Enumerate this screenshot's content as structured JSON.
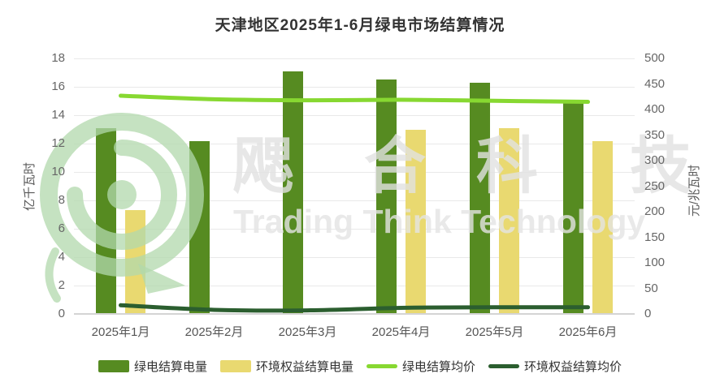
{
  "title": "天津地区2025年1-6月绿电市场结算情况",
  "watermark": {
    "cn_chars": [
      "飔",
      "合",
      "科",
      "技"
    ],
    "en": "Trading Think Technology"
  },
  "chart_data": {
    "type": "bar",
    "subtype": "dual-axis bar and line combo",
    "categories": [
      "2025年1月",
      "2025年2月",
      "2025年3月",
      "2025年4月",
      "2025年5月",
      "2025年6月"
    ],
    "series": [
      {
        "key": "green-power-volume",
        "name": "绿电结算电量",
        "type": "bar",
        "yaxis": "left",
        "color": "#568b21",
        "values": [
          13.1,
          12.2,
          17.1,
          16.5,
          16.3,
          14.9
        ]
      },
      {
        "key": "env-rights-volume",
        "name": "环境权益结算电量",
        "type": "bar",
        "yaxis": "left",
        "color": "#e9d970",
        "values": [
          7.3,
          0,
          0,
          13.0,
          13.1,
          12.2
        ]
      },
      {
        "key": "green-power-price",
        "name": "绿电结算均价",
        "type": "line",
        "yaxis": "right",
        "color": "#87d831",
        "values": [
          427,
          420,
          418,
          419,
          417,
          415
        ]
      },
      {
        "key": "env-rights-price",
        "name": "环境权益结算均价",
        "type": "line",
        "yaxis": "right",
        "color": "#2b5e2f",
        "values": [
          17,
          8,
          7,
          12,
          13,
          13
        ]
      }
    ],
    "left_axis": {
      "name": "亿千瓦时",
      "min": 0,
      "max": 18,
      "tick_step": 2,
      "ticks": [
        0,
        2,
        4,
        6,
        8,
        10,
        12,
        14,
        16,
        18
      ]
    },
    "right_axis": {
      "name": "元/兆瓦时",
      "min": 0,
      "max": 500,
      "tick_step": 50,
      "ticks": [
        0,
        50,
        100,
        150,
        200,
        250,
        300,
        350,
        400,
        450,
        500
      ]
    },
    "legend_position": "bottom",
    "grid": true
  },
  "colors": {
    "grid_line": "#e9e9e9",
    "axis_line": "#d4d4d4",
    "tick_text": "#666666",
    "title_text": "#333333",
    "legend_text": "#333333"
  }
}
